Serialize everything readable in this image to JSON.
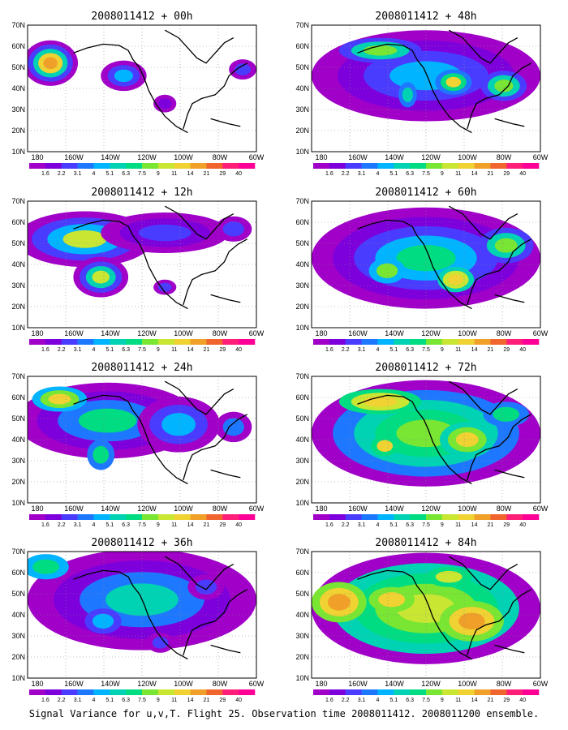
{
  "panels": [
    {
      "title": "2008011412 + 00h"
    },
    {
      "title": "2008011412 + 48h"
    },
    {
      "title": "2008011412 + 12h"
    },
    {
      "title": "2008011412 + 60h"
    },
    {
      "title": "2008011412 + 24h"
    },
    {
      "title": "2008011412 + 72h"
    },
    {
      "title": "2008011412 + 36h"
    },
    {
      "title": "2008011412 + 84h"
    }
  ],
  "lat_ticks": [
    "10N",
    "20N",
    "30N",
    "40N",
    "50N",
    "60N",
    "70N"
  ],
  "lon_ticks": [
    "180",
    "160W",
    "140W",
    "120W",
    "100W",
    "80W",
    "60W"
  ],
  "colorbar": {
    "labels": [
      "1.6",
      "2.2",
      "3.1",
      "4",
      "5.1",
      "6.3",
      "7.5",
      "9",
      "11",
      "14",
      "21",
      "29",
      "40"
    ],
    "colors": [
      "#a000c8",
      "#7d00dc",
      "#4a3cff",
      "#1e78ff",
      "#00b4ff",
      "#00d2b4",
      "#00dc82",
      "#78e632",
      "#c8e632",
      "#f0d232",
      "#f0a028",
      "#f0642d",
      "#ff1e78",
      "#ff0096"
    ]
  },
  "caption": "Signal Variance for u,v,T. Flight 25. Observation time 2008011412. 2008011200 ensemble."
}
